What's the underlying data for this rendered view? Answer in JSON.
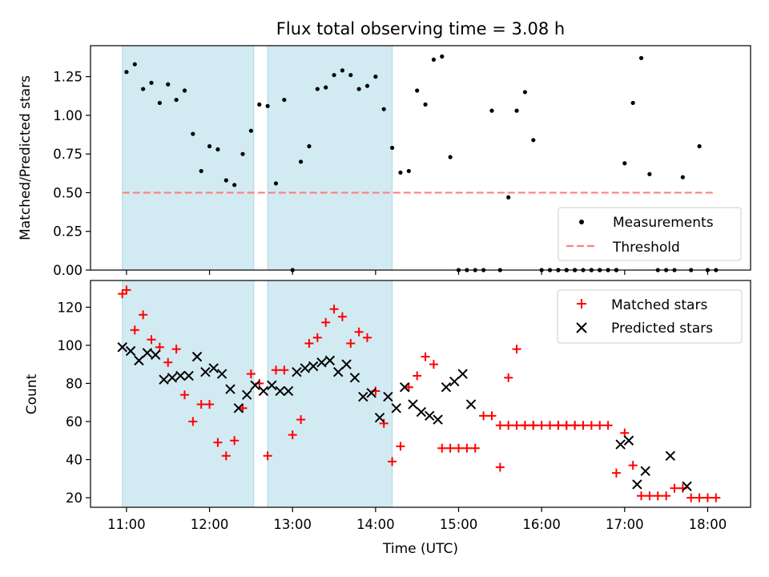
{
  "figure_title": "Flux total observing time = 3.08 h",
  "colors": {
    "shade": "#add8e6",
    "measurement": "#000000",
    "threshold": "#ff7f7f",
    "matched": "#ff0000",
    "predicted": "#000000"
  },
  "chart_data": [
    {
      "type": "scatter",
      "xlabel": "",
      "ylabel": "Matched/Predicted stars",
      "xlim": [
        "10:34",
        "18:31"
      ],
      "ylim": [
        0,
        1.45
      ],
      "yticks": [
        "0.00",
        "0.25",
        "0.50",
        "0.75",
        "1.00",
        "1.25"
      ],
      "legend_position": "lower-right",
      "shaded_intervals": [
        [
          "10:57",
          "12:32"
        ],
        [
          "12:42",
          "14:12"
        ]
      ],
      "threshold": {
        "name": "Threshold",
        "value": 0.5,
        "x_range": [
          "10:57",
          "18:06"
        ]
      },
      "series": [
        {
          "name": "Measurements",
          "marker": "dot",
          "points": [
            [
              "11:00",
              1.28
            ],
            [
              "11:06",
              1.33
            ],
            [
              "11:12",
              1.17
            ],
            [
              "11:18",
              1.21
            ],
            [
              "11:24",
              1.08
            ],
            [
              "11:30",
              1.2
            ],
            [
              "11:36",
              1.1
            ],
            [
              "11:42",
              1.16
            ],
            [
              "11:48",
              0.88
            ],
            [
              "11:54",
              0.64
            ],
            [
              "12:00",
              0.8
            ],
            [
              "12:06",
              0.78
            ],
            [
              "12:12",
              0.58
            ],
            [
              "12:18",
              0.55
            ],
            [
              "12:24",
              0.75
            ],
            [
              "12:30",
              0.9
            ],
            [
              "12:36",
              1.07
            ],
            [
              "12:42",
              1.06
            ],
            [
              "12:48",
              0.56
            ],
            [
              "12:54",
              1.1
            ],
            [
              "13:00",
              0.0
            ],
            [
              "13:06",
              0.7
            ],
            [
              "13:12",
              0.8
            ],
            [
              "13:18",
              1.17
            ],
            [
              "13:24",
              1.18
            ],
            [
              "13:30",
              1.26
            ],
            [
              "13:36",
              1.29
            ],
            [
              "13:42",
              1.26
            ],
            [
              "13:48",
              1.17
            ],
            [
              "13:54",
              1.19
            ],
            [
              "14:00",
              1.25
            ],
            [
              "14:06",
              1.04
            ],
            [
              "14:12",
              0.79
            ],
            [
              "14:18",
              0.63
            ],
            [
              "14:24",
              0.64
            ],
            [
              "14:30",
              1.16
            ],
            [
              "14:36",
              1.07
            ],
            [
              "14:42",
              1.36
            ],
            [
              "14:48",
              1.38
            ],
            [
              "14:54",
              0.73
            ],
            [
              "15:00",
              0.0
            ],
            [
              "15:06",
              0.0
            ],
            [
              "15:12",
              0.0
            ],
            [
              "15:18",
              0.0
            ],
            [
              "15:24",
              1.03
            ],
            [
              "15:30",
              0.0
            ],
            [
              "15:36",
              0.47
            ],
            [
              "15:42",
              1.03
            ],
            [
              "15:48",
              1.15
            ],
            [
              "15:54",
              0.84
            ],
            [
              "16:00",
              0.0
            ],
            [
              "16:06",
              0.0
            ],
            [
              "16:12",
              0.0
            ],
            [
              "16:18",
              0.0
            ],
            [
              "16:24",
              0.0
            ],
            [
              "16:30",
              0.0
            ],
            [
              "16:36",
              0.0
            ],
            [
              "16:42",
              0.0
            ],
            [
              "16:48",
              0.0
            ],
            [
              "16:54",
              0.0
            ],
            [
              "16:12",
              0.0
            ],
            [
              "16:18",
              0.0
            ],
            [
              "16:24",
              0.0
            ],
            [
              "16:36",
              0.0
            ],
            [
              "16:42",
              0.0
            ],
            [
              "16:48",
              0.0
            ],
            [
              "16:54",
              0.0
            ],
            [
              "17:00",
              0.69
            ],
            [
              "17:06",
              1.08
            ],
            [
              "17:12",
              1.37
            ],
            [
              "17:18",
              0.62
            ],
            [
              "17:24",
              0.0
            ],
            [
              "17:30",
              0.0
            ],
            [
              "17:36",
              0.0
            ],
            [
              "17:42",
              0.6
            ],
            [
              "17:48",
              0.0
            ],
            [
              "17:54",
              0.8
            ],
            [
              "18:00",
              0.0
            ],
            [
              "18:06",
              0.0
            ]
          ]
        }
      ]
    },
    {
      "type": "scatter",
      "xlabel": "Time (UTC)",
      "ylabel": "Count",
      "xlim": [
        "10:34",
        "18:31"
      ],
      "ylim": [
        15,
        134
      ],
      "yticks": [
        "20",
        "40",
        "60",
        "80",
        "100",
        "120"
      ],
      "xticks": [
        "11:00",
        "12:00",
        "13:00",
        "14:00",
        "15:00",
        "16:00",
        "17:00",
        "18:00"
      ],
      "legend_position": "upper-right",
      "shaded_intervals": [
        [
          "10:57",
          "12:32"
        ],
        [
          "12:42",
          "14:12"
        ]
      ],
      "series": [
        {
          "name": "Matched stars",
          "marker": "plus",
          "points": [
            [
              "10:57",
              127
            ],
            [
              "11:00",
              129
            ],
            [
              "11:06",
              108
            ],
            [
              "11:12",
              116
            ],
            [
              "11:18",
              103
            ],
            [
              "11:24",
              99
            ],
            [
              "11:30",
              91
            ],
            [
              "11:36",
              98
            ],
            [
              "11:42",
              74
            ],
            [
              "11:48",
              60
            ],
            [
              "11:54",
              69
            ],
            [
              "12:00",
              69
            ],
            [
              "12:06",
              49
            ],
            [
              "12:12",
              42
            ],
            [
              "12:18",
              50
            ],
            [
              "12:24",
              67
            ],
            [
              "12:30",
              85
            ],
            [
              "12:36",
              80
            ],
            [
              "12:42",
              42
            ],
            [
              "12:48",
              87
            ],
            [
              "12:54",
              87
            ],
            [
              "13:00",
              53
            ],
            [
              "13:06",
              61
            ],
            [
              "13:12",
              101
            ],
            [
              "13:18",
              104
            ],
            [
              "13:24",
              112
            ],
            [
              "13:30",
              119
            ],
            [
              "13:36",
              115
            ],
            [
              "13:42",
              101
            ],
            [
              "13:48",
              107
            ],
            [
              "13:54",
              104
            ],
            [
              "14:00",
              76
            ],
            [
              "14:06",
              59
            ],
            [
              "14:12",
              39
            ],
            [
              "14:18",
              47
            ],
            [
              "14:24",
              78
            ],
            [
              "14:30",
              84
            ],
            [
              "14:36",
              94
            ],
            [
              "14:42",
              90
            ],
            [
              "14:48",
              46
            ],
            [
              "14:54",
              46
            ],
            [
              "15:00",
              46
            ],
            [
              "15:06",
              46
            ],
            [
              "15:12",
              46
            ],
            [
              "15:18",
              63
            ],
            [
              "15:24",
              63
            ],
            [
              "15:30",
              36
            ],
            [
              "15:36",
              83
            ],
            [
              "15:42",
              98
            ],
            [
              "15:48",
              58
            ],
            [
              "15:54",
              58
            ],
            [
              "16:00",
              58
            ],
            [
              "16:06",
              58
            ],
            [
              "16:12",
              58
            ],
            [
              "16:18",
              58
            ],
            [
              "16:24",
              58
            ],
            [
              "15:30",
              58
            ],
            [
              "15:36",
              58
            ],
            [
              "15:42",
              58
            ],
            [
              "15:48",
              58
            ],
            [
              "15:54",
              58
            ],
            [
              "16:12",
              58
            ],
            [
              "16:18",
              58
            ],
            [
              "16:24",
              58
            ],
            [
              "16:30",
              58
            ],
            [
              "16:36",
              58
            ],
            [
              "16:42",
              58
            ],
            [
              "16:48",
              58
            ],
            [
              "16:54",
              33
            ],
            [
              "17:00",
              54
            ],
            [
              "17:06",
              37
            ],
            [
              "17:12",
              21
            ],
            [
              "17:18",
              21
            ],
            [
              "17:24",
              21
            ],
            [
              "17:30",
              21
            ],
            [
              "17:36",
              25
            ],
            [
              "17:42",
              25
            ],
            [
              "17:48",
              20
            ],
            [
              "17:54",
              20
            ],
            [
              "18:00",
              20
            ],
            [
              "18:06",
              20
            ]
          ]
        },
        {
          "name": "Predicted stars",
          "marker": "x",
          "points": [
            [
              "10:57",
              99
            ],
            [
              "11:03",
              97
            ],
            [
              "11:09",
              92
            ],
            [
              "11:15",
              96
            ],
            [
              "11:21",
              95
            ],
            [
              "11:27",
              82
            ],
            [
              "11:33",
              83
            ],
            [
              "11:39",
              84
            ],
            [
              "11:45",
              84
            ],
            [
              "11:51",
              94
            ],
            [
              "11:57",
              86
            ],
            [
              "12:03",
              88
            ],
            [
              "12:09",
              85
            ],
            [
              "12:15",
              77
            ],
            [
              "12:21",
              67
            ],
            [
              "12:27",
              74
            ],
            [
              "12:33",
              79
            ],
            [
              "12:39",
              76
            ],
            [
              "12:45",
              79
            ],
            [
              "12:51",
              76
            ],
            [
              "12:57",
              76
            ],
            [
              "13:03",
              86
            ],
            [
              "13:09",
              88
            ],
            [
              "13:15",
              89
            ],
            [
              "13:21",
              91
            ],
            [
              "13:27",
              92
            ],
            [
              "13:33",
              86
            ],
            [
              "13:39",
              90
            ],
            [
              "13:45",
              83
            ],
            [
              "13:51",
              73
            ],
            [
              "13:57",
              75
            ],
            [
              "14:03",
              62
            ],
            [
              "14:09",
              73
            ],
            [
              "14:15",
              67
            ],
            [
              "14:21",
              78
            ],
            [
              "14:27",
              69
            ],
            [
              "14:33",
              65
            ],
            [
              "14:39",
              63
            ],
            [
              "14:45",
              61
            ],
            [
              "14:51",
              78
            ],
            [
              "14:57",
              81
            ],
            [
              "15:03",
              85
            ],
            [
              "15:09",
              69
            ],
            [
              "16:57",
              48
            ],
            [
              "17:03",
              50
            ],
            [
              "17:09",
              27
            ],
            [
              "17:15",
              34
            ],
            [
              "17:33",
              42
            ],
            [
              "17:45",
              26
            ]
          ]
        }
      ]
    }
  ]
}
